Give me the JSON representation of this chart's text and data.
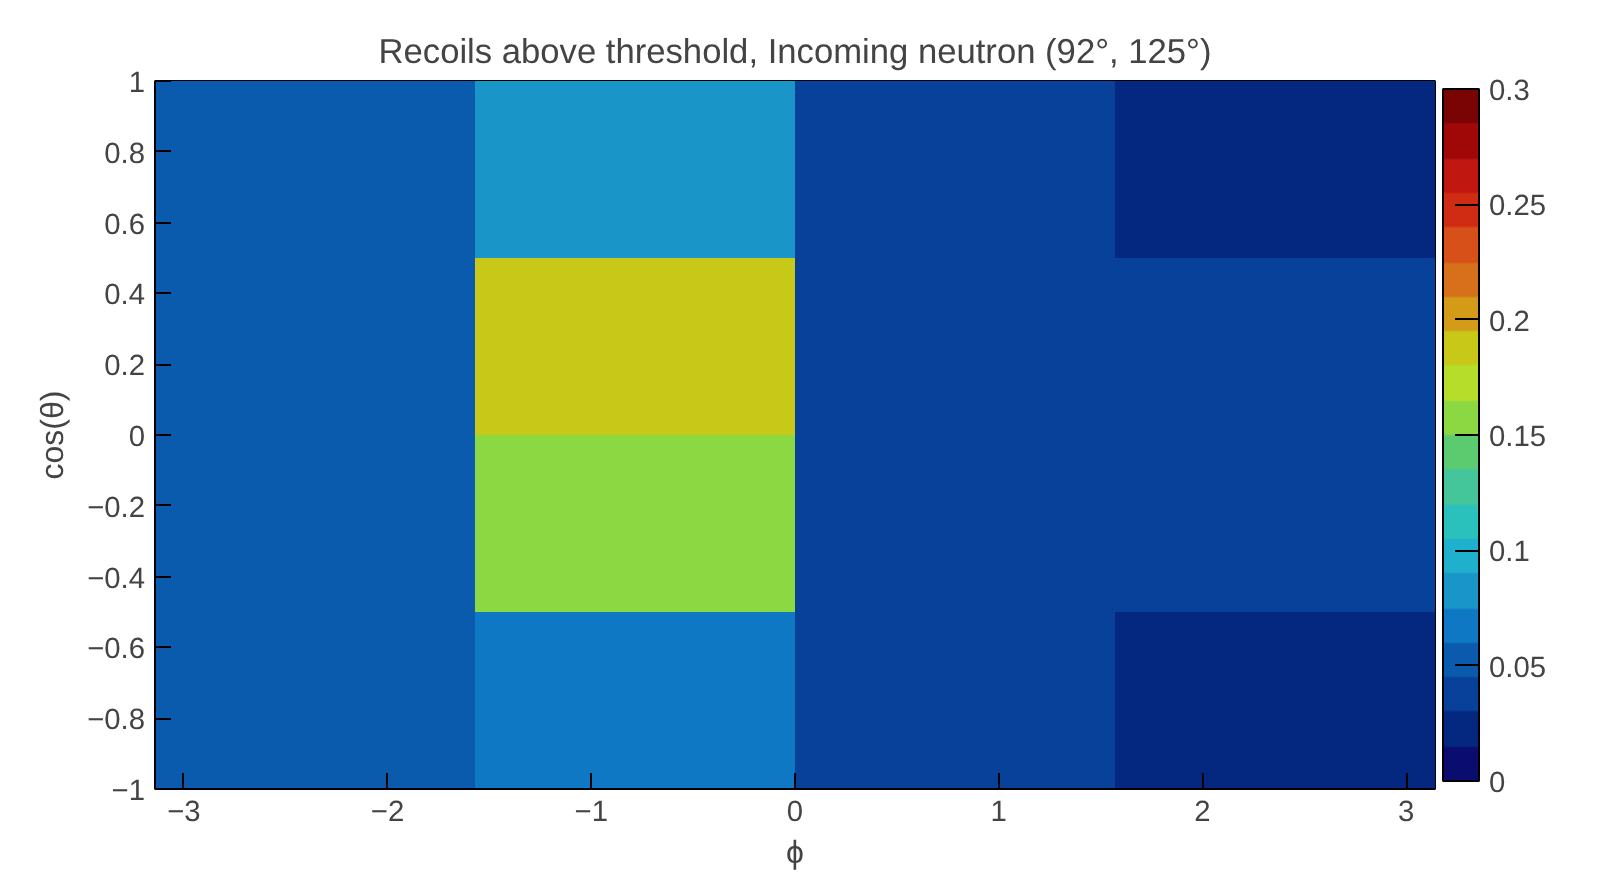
{
  "chart_data": {
    "type": "heatmap",
    "title": "Recoils above threshold, Incoming neutron (92°, 125°)",
    "xlabel": "ϕ",
    "ylabel": "cos(θ)",
    "xlim": [
      -3.1416,
      3.1416
    ],
    "xticks": [
      {
        "value": -3,
        "label": "−3"
      },
      {
        "value": -2,
        "label": "−2"
      },
      {
        "value": -1,
        "label": "−1"
      },
      0,
      1,
      2,
      3
    ],
    "ylim": [
      -1,
      1
    ],
    "yticks": [
      {
        "value": -1,
        "label": "−1"
      },
      {
        "value": -0.8,
        "label": "−0.8"
      },
      {
        "value": -0.6,
        "label": "−0.6"
      },
      {
        "value": -0.4,
        "label": "−0.4"
      },
      {
        "value": -0.2,
        "label": "−0.2"
      },
      0,
      0.2,
      0.4,
      0.6,
      0.8,
      1
    ],
    "cells": [
      [
        0.055,
        0.08,
        0.04,
        0.025
      ],
      [
        0.055,
        0.19,
        0.04,
        0.04
      ],
      [
        0.055,
        0.16,
        0.04,
        0.04
      ],
      [
        0.055,
        0.07,
        0.04,
        0.025
      ]
    ],
    "clim": [
      0,
      0.3
    ],
    "cticks": [
      0,
      0.05,
      0.1,
      0.15,
      0.2,
      0.25,
      0.3
    ]
  }
}
